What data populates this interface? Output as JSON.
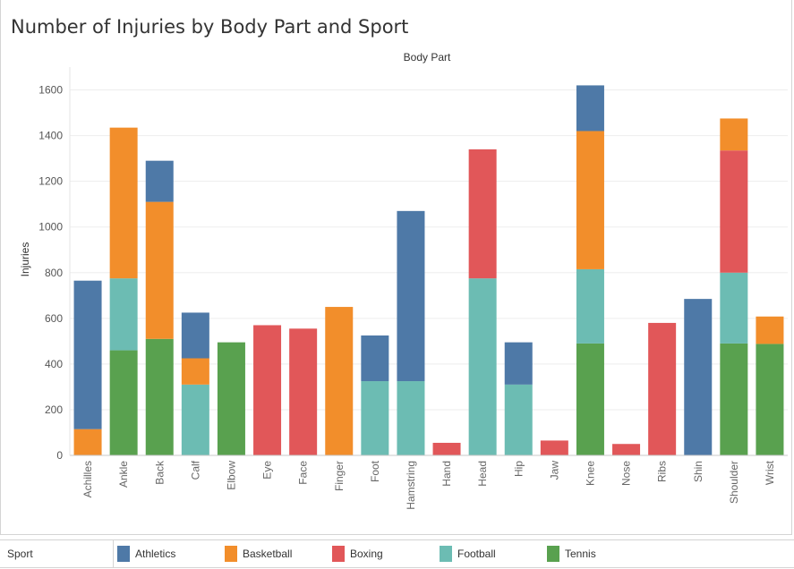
{
  "chart_data": {
    "type": "bar",
    "stacked": true,
    "title": "Number of Injuries by Body Part and Sport",
    "header": "Body Part",
    "ylabel": "Injuries",
    "ylim": [
      0,
      1700
    ],
    "yticks": [
      0,
      200,
      400,
      600,
      800,
      1000,
      1200,
      1400,
      1600
    ],
    "grid": true,
    "legend_title": "Sport",
    "legend_position": "bottom",
    "categories": [
      "Achilles",
      "Ankle",
      "Back",
      "Calf",
      "Elbow",
      "Eye",
      "Face",
      "Finger",
      "Foot",
      "Hamstring",
      "Hand",
      "Head",
      "Hip",
      "Jaw",
      "Knee",
      "Nose",
      "Ribs",
      "Shin",
      "Shoulder",
      "Wrist"
    ],
    "series": [
      {
        "name": "Tennis",
        "color": "#59a14f",
        "values": [
          0,
          460,
          510,
          0,
          495,
          0,
          0,
          0,
          0,
          0,
          0,
          0,
          0,
          0,
          490,
          0,
          0,
          0,
          490,
          488
        ]
      },
      {
        "name": "Football",
        "color": "#6cbcb3",
        "values": [
          0,
          315,
          0,
          310,
          0,
          0,
          0,
          0,
          325,
          325,
          0,
          775,
          310,
          0,
          325,
          0,
          0,
          0,
          310,
          0
        ]
      },
      {
        "name": "Boxing",
        "color": "#e15759",
        "values": [
          0,
          0,
          0,
          0,
          0,
          570,
          555,
          0,
          0,
          0,
          55,
          565,
          0,
          65,
          0,
          50,
          580,
          0,
          535,
          0
        ]
      },
      {
        "name": "Basketball",
        "color": "#f28e2b",
        "values": [
          115,
          660,
          600,
          115,
          0,
          0,
          0,
          650,
          0,
          0,
          0,
          0,
          0,
          0,
          605,
          0,
          0,
          0,
          140,
          120
        ]
      },
      {
        "name": "Athletics",
        "color": "#4e79a7",
        "values": [
          650,
          0,
          180,
          200,
          0,
          0,
          0,
          0,
          200,
          745,
          0,
          0,
          185,
          0,
          200,
          0,
          0,
          685,
          0,
          0
        ]
      }
    ],
    "legend_order": [
      "Athletics",
      "Basketball",
      "Boxing",
      "Football",
      "Tennis"
    ]
  }
}
